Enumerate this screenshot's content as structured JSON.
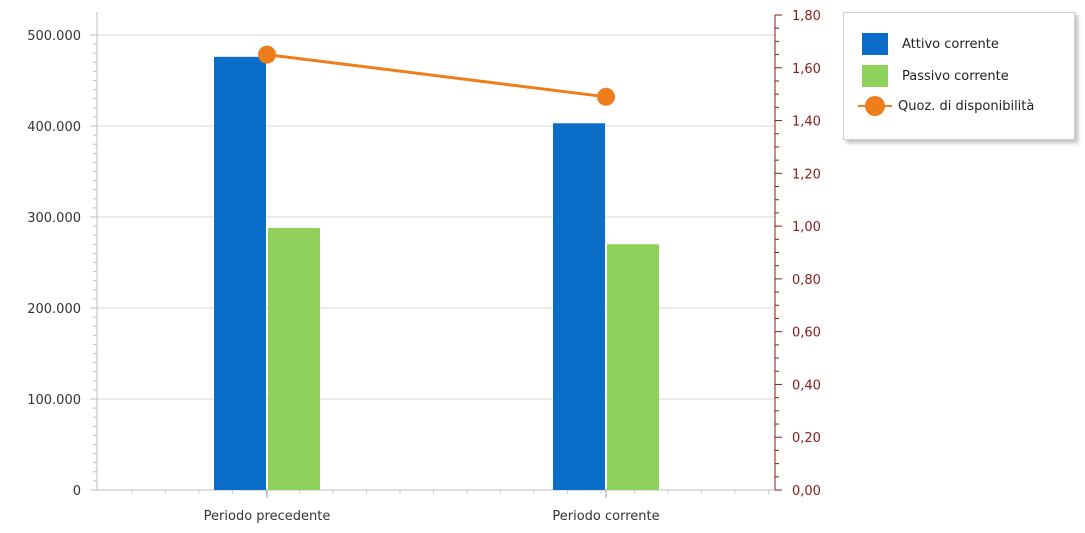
{
  "chart_data": {
    "type": "bar",
    "categories": [
      "Periodo precedente",
      "Periodo corrente"
    ],
    "series": [
      {
        "name": "Attivo corrente",
        "type": "bar",
        "axis": "left",
        "values": [
          476000,
          403000
        ],
        "color": "#0a6ec8"
      },
      {
        "name": "Passivo corrente",
        "type": "bar",
        "axis": "left",
        "values": [
          288000,
          270000
        ],
        "color": "#8fd15a"
      },
      {
        "name": "Quoz. di disponibilità",
        "type": "line",
        "axis": "right",
        "values": [
          1.65,
          1.49
        ],
        "color": "#ee7d1c"
      }
    ],
    "left_axis": {
      "ylim": [
        0,
        500000
      ],
      "ticks": [
        0,
        100000,
        200000,
        300000,
        400000,
        500000
      ],
      "tick_labels": [
        "0",
        "100.000",
        "200.000",
        "300.000",
        "400.000",
        "500.000"
      ]
    },
    "right_axis": {
      "ylim": [
        0,
        1.8
      ],
      "ticks": [
        0,
        0.2,
        0.4,
        0.6,
        0.8,
        1.0,
        1.2,
        1.4,
        1.6,
        1.8
      ],
      "tick_labels": [
        "0,00",
        "0,20",
        "0,40",
        "0,60",
        "0,80",
        "1,00",
        "1,20",
        "1,40",
        "1,60",
        "1,80"
      ],
      "color": "#8b1a1a"
    },
    "grid": true,
    "legend_position": "top-right"
  },
  "legend": {
    "items": [
      {
        "label": "Attivo corrente",
        "color": "#0a6ec8",
        "kind": "box"
      },
      {
        "label": "Passivo corrente",
        "color": "#8fd15a",
        "kind": "box"
      },
      {
        "label": "Quoz. di disponibilità",
        "color": "#ee7d1c",
        "kind": "line-marker"
      }
    ]
  }
}
